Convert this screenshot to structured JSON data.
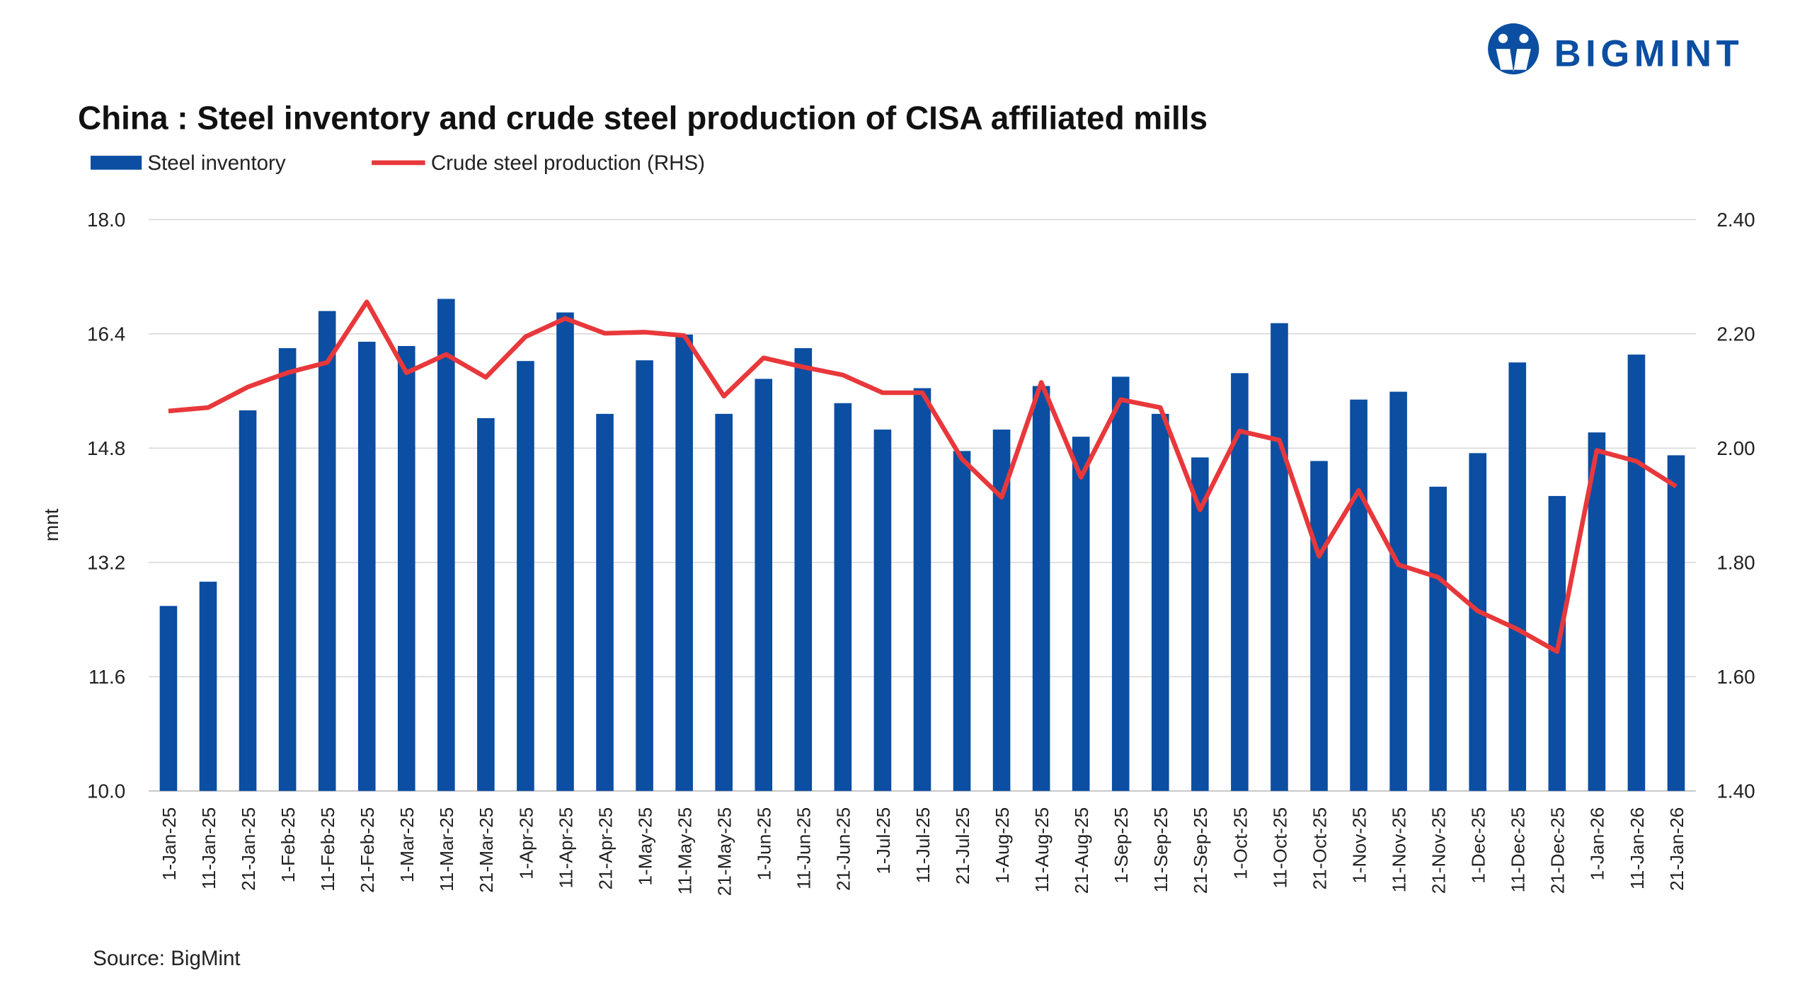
{
  "brand": {
    "name": "BIGMINT",
    "color": "#0b4ea2"
  },
  "source": "Source: BigMint",
  "chart_data": {
    "type": "bar+line",
    "title": "China : Steel inventory and crude steel production of CISA affiliated mills",
    "ylabel": "mnt",
    "ylim": [
      10.0,
      18.0
    ],
    "y2lim": [
      1.4,
      2.4
    ],
    "yticks": [
      "10.0",
      "11.6",
      "13.2",
      "14.8",
      "16.4",
      "18.0"
    ],
    "y2ticks": [
      "1.40",
      "1.60",
      "1.80",
      "2.00",
      "2.20",
      "2.40"
    ],
    "grid": true,
    "legend_position": "top-left",
    "categories": [
      "1-Jan-25",
      "11-Jan-25",
      "21-Jan-25",
      "1-Feb-25",
      "11-Feb-25",
      "21-Feb-25",
      "1-Mar-25",
      "11-Mar-25",
      "21-Mar-25",
      "1-Apr-25",
      "11-Apr-25",
      "21-Apr-25",
      "1-May-25",
      "11-May-25",
      "21-May-25",
      "1-Jun-25",
      "11-Jun-25",
      "21-Jun-25",
      "1-Jul-25",
      "11-Jul-25",
      "21-Jul-25",
      "1-Aug-25",
      "11-Aug-25",
      "21-Aug-25",
      "1-Sep-25",
      "11-Sep-25",
      "21-Sep-25",
      "1-Oct-25",
      "11-Oct-25",
      "21-Oct-25",
      "1-Nov-25",
      "11-Nov-25",
      "21-Nov-25",
      "1-Dec-25",
      "11-Dec-25",
      "21-Dec-25",
      "1-Jan-26",
      "11-Jan-26",
      "21-Jan-26"
    ],
    "series": [
      {
        "name": "Steel inventory",
        "type": "bar",
        "axis": "left",
        "color": "#0b4ea2",
        "values": [
          12.59,
          12.93,
          15.33,
          16.2,
          16.72,
          16.29,
          16.23,
          16.89,
          15.22,
          16.02,
          16.7,
          15.28,
          16.03,
          16.39,
          15.28,
          15.77,
          16.2,
          15.43,
          15.06,
          15.64,
          14.76,
          15.06,
          15.67,
          14.96,
          15.8,
          15.28,
          14.67,
          15.85,
          16.55,
          14.62,
          15.48,
          15.59,
          14.26,
          14.73,
          16.0,
          14.13,
          15.02,
          16.11,
          14.7
        ]
      },
      {
        "name": "Crude steel production (RHS)",
        "type": "line",
        "axis": "right",
        "color": "#e8383b",
        "values": [
          2.065,
          2.071,
          2.107,
          2.132,
          2.15,
          2.256,
          2.132,
          2.164,
          2.124,
          2.195,
          2.227,
          2.201,
          2.203,
          2.197,
          2.091,
          2.158,
          2.142,
          2.128,
          2.097,
          2.097,
          1.981,
          1.914,
          2.115,
          1.949,
          2.085,
          2.071,
          1.892,
          2.03,
          2.014,
          1.811,
          1.926,
          1.796,
          1.774,
          1.715,
          1.683,
          1.644,
          1.996,
          1.977,
          1.933
        ]
      }
    ]
  }
}
